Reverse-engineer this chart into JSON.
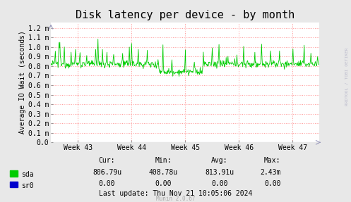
{
  "title": "Disk latency per device - by month",
  "ylabel": "Average IO Wait (seconds)",
  "background_color": "#e8e8e8",
  "plot_bg_color": "#ffffff",
  "grid_color": "#ff9999",
  "line_color_sda": "#00cc00",
  "line_color_sr0": "#0000cc",
  "ytick_labels": [
    "0.0",
    "0.1 m",
    "0.2 m",
    "0.3 m",
    "0.4 m",
    "0.5 m",
    "0.6 m",
    "0.7 m",
    "0.8 m",
    "0.9 m",
    "1.0 m",
    "1.1 m",
    "1.2 m"
  ],
  "ytick_values": [
    0.0,
    0.0001,
    0.0002,
    0.0003,
    0.0004,
    0.0005,
    0.0006,
    0.0007,
    0.0008,
    0.0009,
    0.001,
    0.0011,
    0.0012
  ],
  "xtick_labels": [
    "Week 43",
    "Week 44",
    "Week 45",
    "Week 46",
    "Week 47"
  ],
  "xtick_positions": [
    0.1,
    0.3,
    0.5,
    0.7,
    0.9
  ],
  "ymax": 0.00126,
  "ymin": 0.0,
  "title_fontsize": 11,
  "axis_fontsize": 7,
  "tick_fontsize": 7,
  "legend_sda": "sda",
  "legend_sr0": "sr0",
  "cur_label": "Cur:",
  "min_label": "Min:",
  "avg_label": "Avg:",
  "max_label": "Max:",
  "sda_cur": "806.79u",
  "sda_min": "408.78u",
  "sda_avg": "813.91u",
  "sda_max": "2.43m",
  "sr0_cur": "0.00",
  "sr0_min": "0.00",
  "sr0_avg": "0.00",
  "sr0_max": "0.00",
  "last_update": "Last update: Thu Nov 21 10:05:06 2024",
  "munin_version": "Munin 2.0.67",
  "rrdtool_label": "RRDTOOL / TOBI OETIKER",
  "arrow_color": "#9999bb"
}
